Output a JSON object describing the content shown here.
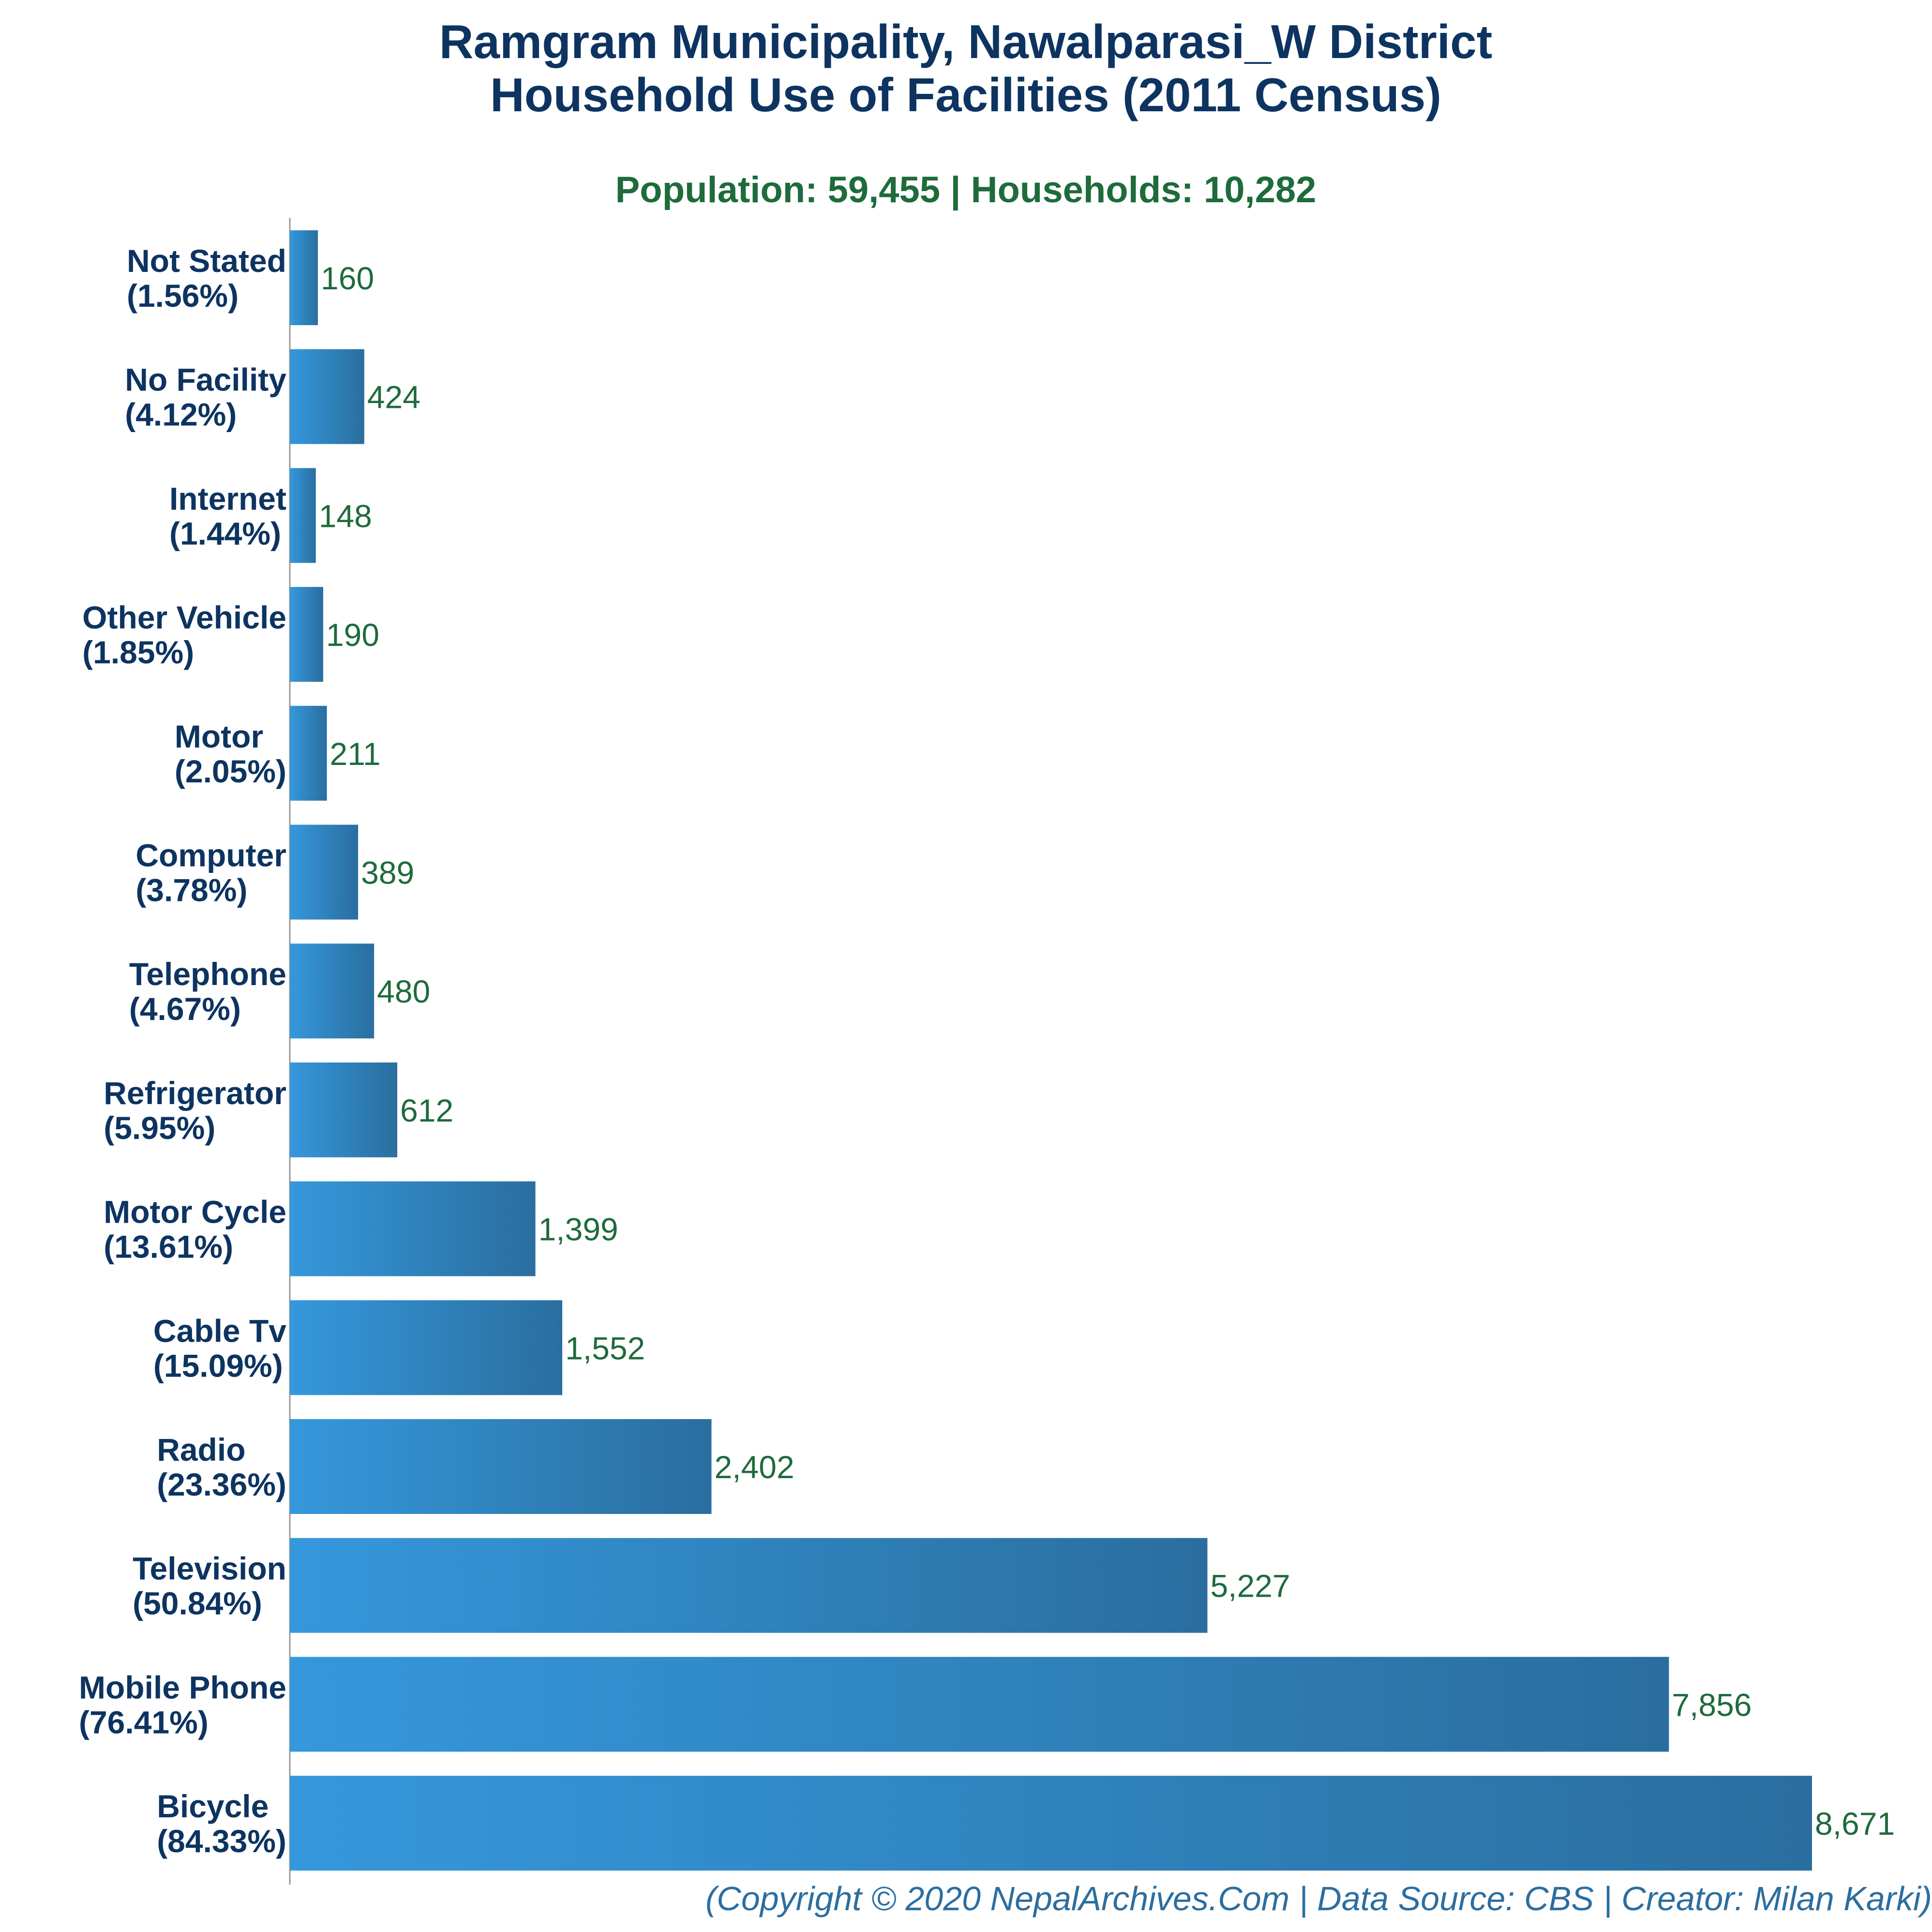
{
  "chart_data": {
    "type": "bar",
    "orientation": "horizontal",
    "title_lines": [
      "Ramgram Municipality, Nawalparasi_W District",
      "Household Use of Facilities (2011 Census)"
    ],
    "subtitle": "Population: 59,455 | Households: 10,282",
    "footer": "(Copyright © 2020 NepalArchives.Com | Data Source: CBS | Creator: Milan Karki)",
    "categories": [
      "Not Stated",
      "No Facility",
      "Internet",
      "Other Vehicle",
      "Motor",
      "Computer",
      "Telephone",
      "Refrigerator",
      "Motor Cycle",
      "Cable Tv",
      "Radio",
      "Television",
      "Mobile Phone",
      "Bicycle"
    ],
    "percent_labels": [
      "(1.56%)",
      "(4.12%)",
      "(1.44%)",
      "(1.85%)",
      "(2.05%)",
      "(3.78%)",
      "(4.67%)",
      "(5.95%)",
      "(13.61%)",
      "(15.09%)",
      "(23.36%)",
      "(50.84%)",
      "(76.41%)",
      "(84.33%)"
    ],
    "values": [
      160,
      424,
      148,
      190,
      211,
      389,
      480,
      612,
      1399,
      1552,
      2402,
      5227,
      7856,
      8671
    ],
    "value_labels": [
      "160",
      "424",
      "148",
      "190",
      "211",
      "389",
      "480",
      "612",
      "1,399",
      "1,552",
      "2,402",
      "5,227",
      "7,856",
      "8,671"
    ],
    "xlim": [
      0,
      8671
    ],
    "grid": false,
    "legend": "none"
  },
  "colors": {
    "title": "#0d3461",
    "subtitle": "#1e6b3c",
    "category_label": "#0d3461",
    "value_label": "#1e6b3c",
    "footer": "#2c6ea0",
    "bar_start": "#3598dc",
    "bar_end": "#2a6e9f",
    "axis": "#999999"
  }
}
